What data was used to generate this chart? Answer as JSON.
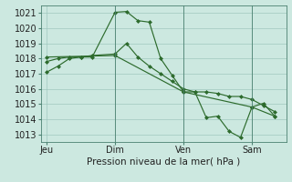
{
  "xlabel": "Pression niveau de la mer( hPa )",
  "bg_color": "#cce8e0",
  "grid_color": "#a8ccC4",
  "line_color": "#2d6b2d",
  "ylim": [
    1012.5,
    1021.5
  ],
  "yticks": [
    1013,
    1014,
    1015,
    1016,
    1017,
    1018,
    1019,
    1020,
    1021
  ],
  "day_labels": [
    "Jeu",
    "Dim",
    "Ven",
    "Sam"
  ],
  "day_positions": [
    0,
    36,
    72,
    108
  ],
  "vline_positions": [
    36,
    72,
    108
  ],
  "xlim": [
    -3,
    126
  ],
  "line1_x": [
    0,
    6,
    12,
    18,
    24,
    36,
    42,
    48,
    54,
    60,
    66,
    72,
    78,
    84,
    90,
    96,
    102,
    108,
    114,
    120
  ],
  "line1_y": [
    1017.1,
    1017.5,
    1018.0,
    1018.1,
    1018.1,
    1021.05,
    1021.1,
    1020.5,
    1020.4,
    1018.0,
    1016.9,
    1015.8,
    1015.8,
    1014.1,
    1014.2,
    1013.2,
    1012.8,
    1014.8,
    1015.05,
    1014.2
  ],
  "line2_x": [
    0,
    6,
    12,
    18,
    24,
    36,
    42,
    48,
    54,
    60,
    66,
    72,
    78,
    84,
    90,
    96,
    102,
    108,
    114,
    120
  ],
  "line2_y": [
    1017.8,
    1018.0,
    1018.1,
    1018.1,
    1018.2,
    1018.3,
    1019.0,
    1018.1,
    1017.5,
    1017.0,
    1016.5,
    1016.0,
    1015.8,
    1015.8,
    1015.7,
    1015.5,
    1015.5,
    1015.3,
    1014.9,
    1014.5
  ],
  "line3_x": [
    0,
    36,
    72,
    108,
    120
  ],
  "line3_y": [
    1018.1,
    1018.2,
    1015.8,
    1014.8,
    1014.2
  ]
}
